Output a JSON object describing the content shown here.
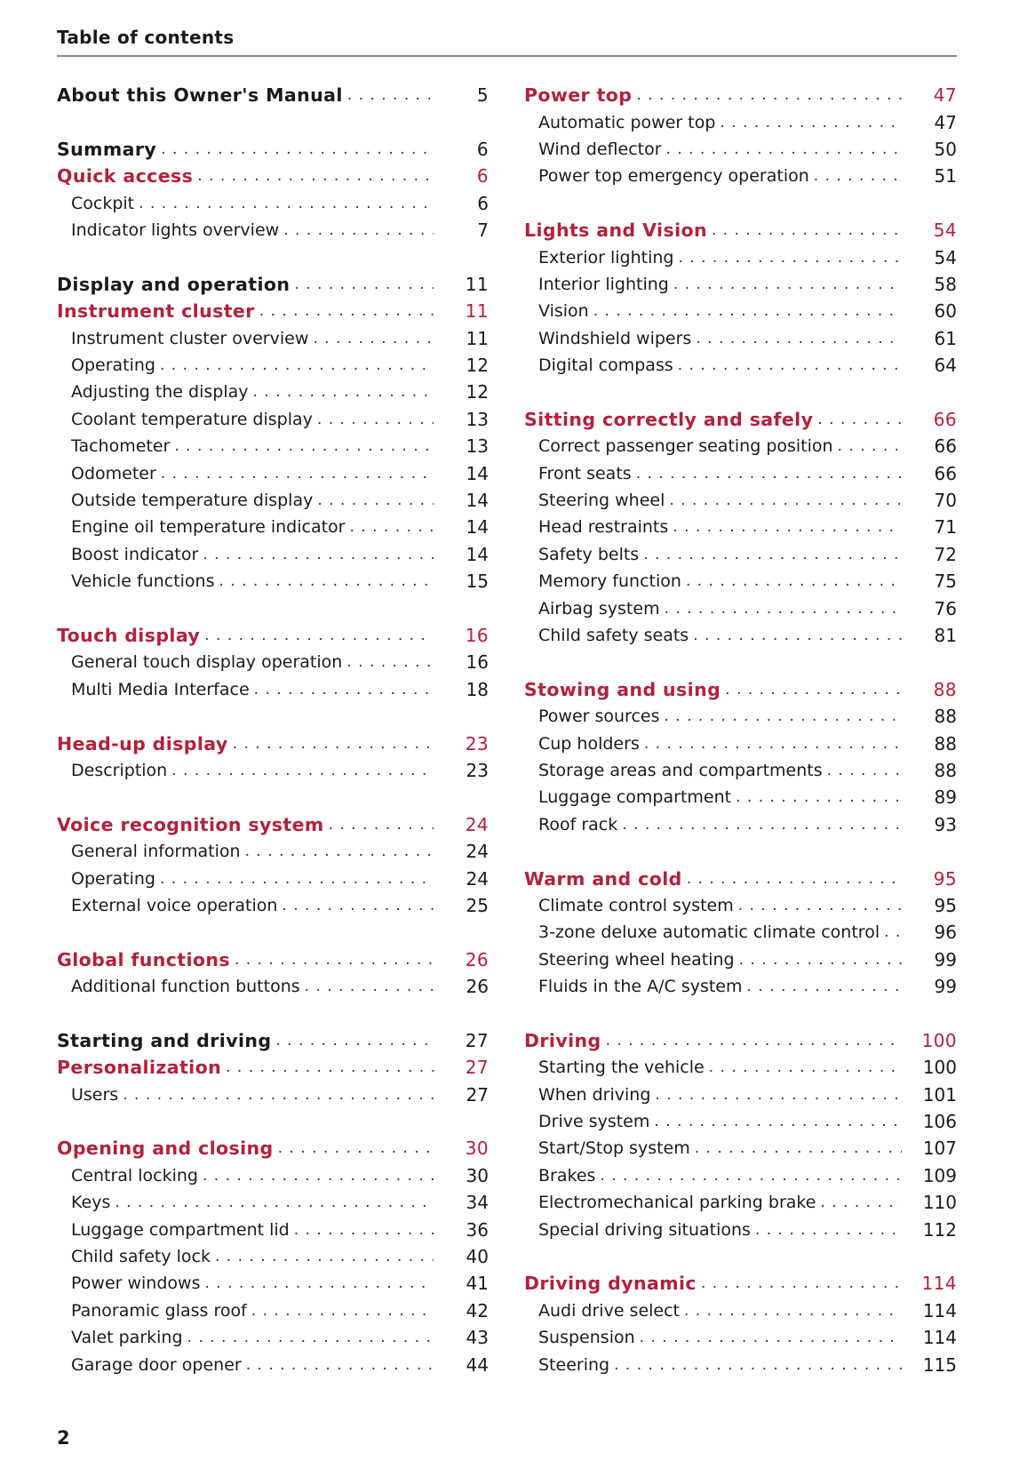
{
  "header": {
    "title": "Table of contents"
  },
  "page_number": "2",
  "colors": {
    "chapter": "#b5203a",
    "text": "#1a1a1a",
    "rule": "#8a8a8a"
  },
  "columns": [
    {
      "entries": [
        {
          "type": "main",
          "title": "About this Owner's Manual",
          "page": "5"
        },
        {
          "type": "blank"
        },
        {
          "type": "main",
          "title": "Summary",
          "page": "6"
        },
        {
          "type": "chapter",
          "title": "Quick access",
          "page": "6"
        },
        {
          "type": "sub",
          "title": "Cockpit",
          "page": "6"
        },
        {
          "type": "sub",
          "title": "Indicator lights overview",
          "page": "7"
        },
        {
          "type": "blank"
        },
        {
          "type": "main",
          "title": "Display and operation",
          "page": "11"
        },
        {
          "type": "chapter",
          "title": "Instrument cluster",
          "page": "11"
        },
        {
          "type": "sub",
          "title": "Instrument cluster overview",
          "page": "11"
        },
        {
          "type": "sub",
          "title": "Operating",
          "page": "12"
        },
        {
          "type": "sub",
          "title": "Adjusting the display",
          "page": "12"
        },
        {
          "type": "sub",
          "title": "Coolant temperature display",
          "page": "13"
        },
        {
          "type": "sub",
          "title": "Tachometer",
          "page": "13"
        },
        {
          "type": "sub",
          "title": "Odometer",
          "page": "14"
        },
        {
          "type": "sub",
          "title": "Outside temperature display",
          "page": "14"
        },
        {
          "type": "sub",
          "title": "Engine oil temperature indicator",
          "page": "14"
        },
        {
          "type": "sub",
          "title": "Boost indicator",
          "page": "14"
        },
        {
          "type": "sub",
          "title": "Vehicle functions",
          "page": "15"
        },
        {
          "type": "blank"
        },
        {
          "type": "chapter",
          "title": "Touch display",
          "page": "16"
        },
        {
          "type": "sub",
          "title": "General touch display operation",
          "page": "16"
        },
        {
          "type": "sub",
          "title": "Multi Media Interface",
          "page": "18"
        },
        {
          "type": "blank"
        },
        {
          "type": "chapter",
          "title": "Head-up display",
          "page": "23"
        },
        {
          "type": "sub",
          "title": "Description",
          "page": "23"
        },
        {
          "type": "blank"
        },
        {
          "type": "chapter",
          "title": "Voice recognition system",
          "page": "24"
        },
        {
          "type": "sub",
          "title": "General information",
          "page": "24"
        },
        {
          "type": "sub",
          "title": "Operating",
          "page": "24"
        },
        {
          "type": "sub",
          "title": "External voice operation",
          "page": "25"
        },
        {
          "type": "blank"
        },
        {
          "type": "chapter",
          "title": "Global functions",
          "page": "26"
        },
        {
          "type": "sub",
          "title": "Additional function buttons",
          "page": "26"
        },
        {
          "type": "blank"
        },
        {
          "type": "main",
          "title": "Starting and driving",
          "page": "27"
        },
        {
          "type": "chapter",
          "title": "Personalization",
          "page": "27"
        },
        {
          "type": "sub",
          "title": "Users",
          "page": "27"
        },
        {
          "type": "blank"
        },
        {
          "type": "chapter",
          "title": "Opening and closing",
          "page": "30"
        },
        {
          "type": "sub",
          "title": "Central locking",
          "page": "30"
        },
        {
          "type": "sub",
          "title": "Keys",
          "page": "34"
        },
        {
          "type": "sub",
          "title": "Luggage compartment lid",
          "page": "36"
        },
        {
          "type": "sub",
          "title": "Child safety lock",
          "page": "40"
        },
        {
          "type": "sub",
          "title": "Power windows",
          "page": "41"
        },
        {
          "type": "sub",
          "title": "Panoramic glass roof",
          "page": "42"
        },
        {
          "type": "sub",
          "title": "Valet parking",
          "page": "43"
        },
        {
          "type": "sub",
          "title": "Garage door opener",
          "page": "44"
        }
      ]
    },
    {
      "entries": [
        {
          "type": "chapter",
          "title": "Power top",
          "page": "47"
        },
        {
          "type": "sub",
          "title": "Automatic power top",
          "page": "47"
        },
        {
          "type": "sub",
          "title": "Wind deflector",
          "page": "50"
        },
        {
          "type": "sub",
          "title": "Power top emergency operation",
          "page": "51"
        },
        {
          "type": "blank"
        },
        {
          "type": "chapter",
          "title": "Lights and Vision",
          "page": "54"
        },
        {
          "type": "sub",
          "title": "Exterior lighting",
          "page": "54"
        },
        {
          "type": "sub",
          "title": "Interior lighting",
          "page": "58"
        },
        {
          "type": "sub",
          "title": "Vision",
          "page": "60"
        },
        {
          "type": "sub",
          "title": "Windshield wipers",
          "page": "61"
        },
        {
          "type": "sub",
          "title": "Digital compass",
          "page": "64"
        },
        {
          "type": "blank"
        },
        {
          "type": "chapter",
          "title": "Sitting correctly and safely",
          "page": "66"
        },
        {
          "type": "sub",
          "title": "Correct passenger seating position",
          "page": "66"
        },
        {
          "type": "sub",
          "title": "Front seats",
          "page": "66"
        },
        {
          "type": "sub",
          "title": "Steering wheel",
          "page": "70"
        },
        {
          "type": "sub",
          "title": "Head restraints",
          "page": "71"
        },
        {
          "type": "sub",
          "title": "Safety belts",
          "page": "72"
        },
        {
          "type": "sub",
          "title": "Memory function",
          "page": "75"
        },
        {
          "type": "sub",
          "title": "Airbag system",
          "page": "76"
        },
        {
          "type": "sub",
          "title": "Child safety seats",
          "page": "81"
        },
        {
          "type": "blank"
        },
        {
          "type": "chapter",
          "title": "Stowing and using",
          "page": "88"
        },
        {
          "type": "sub",
          "title": "Power sources",
          "page": "88"
        },
        {
          "type": "sub",
          "title": "Cup holders",
          "page": "88"
        },
        {
          "type": "sub",
          "title": "Storage areas and compartments",
          "page": "88"
        },
        {
          "type": "sub",
          "title": "Luggage compartment",
          "page": "89"
        },
        {
          "type": "sub",
          "title": "Roof rack",
          "page": "93"
        },
        {
          "type": "blank"
        },
        {
          "type": "chapter",
          "title": "Warm and cold",
          "page": "95"
        },
        {
          "type": "sub",
          "title": "Climate control system",
          "page": "95"
        },
        {
          "type": "sub",
          "title": "3-zone deluxe automatic climate control",
          "page": "96"
        },
        {
          "type": "sub",
          "title": "Steering wheel heating",
          "page": "99"
        },
        {
          "type": "sub",
          "title": "Fluids in the A/C system",
          "page": "99"
        },
        {
          "type": "blank"
        },
        {
          "type": "chapter",
          "title": "Driving",
          "page": "100"
        },
        {
          "type": "sub",
          "title": "Starting the vehicle",
          "page": "100"
        },
        {
          "type": "sub",
          "title": "When driving",
          "page": "101"
        },
        {
          "type": "sub",
          "title": "Drive system",
          "page": "106"
        },
        {
          "type": "sub",
          "title": "Start/Stop system",
          "page": "107"
        },
        {
          "type": "sub",
          "title": "Brakes",
          "page": "109"
        },
        {
          "type": "sub",
          "title": "Electromechanical parking brake",
          "page": "110"
        },
        {
          "type": "sub",
          "title": "Special driving situations",
          "page": "112"
        },
        {
          "type": "blank"
        },
        {
          "type": "chapter",
          "title": "Driving dynamic",
          "page": "114"
        },
        {
          "type": "sub",
          "title": "Audi drive select",
          "page": "114"
        },
        {
          "type": "sub",
          "title": "Suspension",
          "page": "114"
        },
        {
          "type": "sub",
          "title": "Steering",
          "page": "115"
        }
      ]
    }
  ]
}
